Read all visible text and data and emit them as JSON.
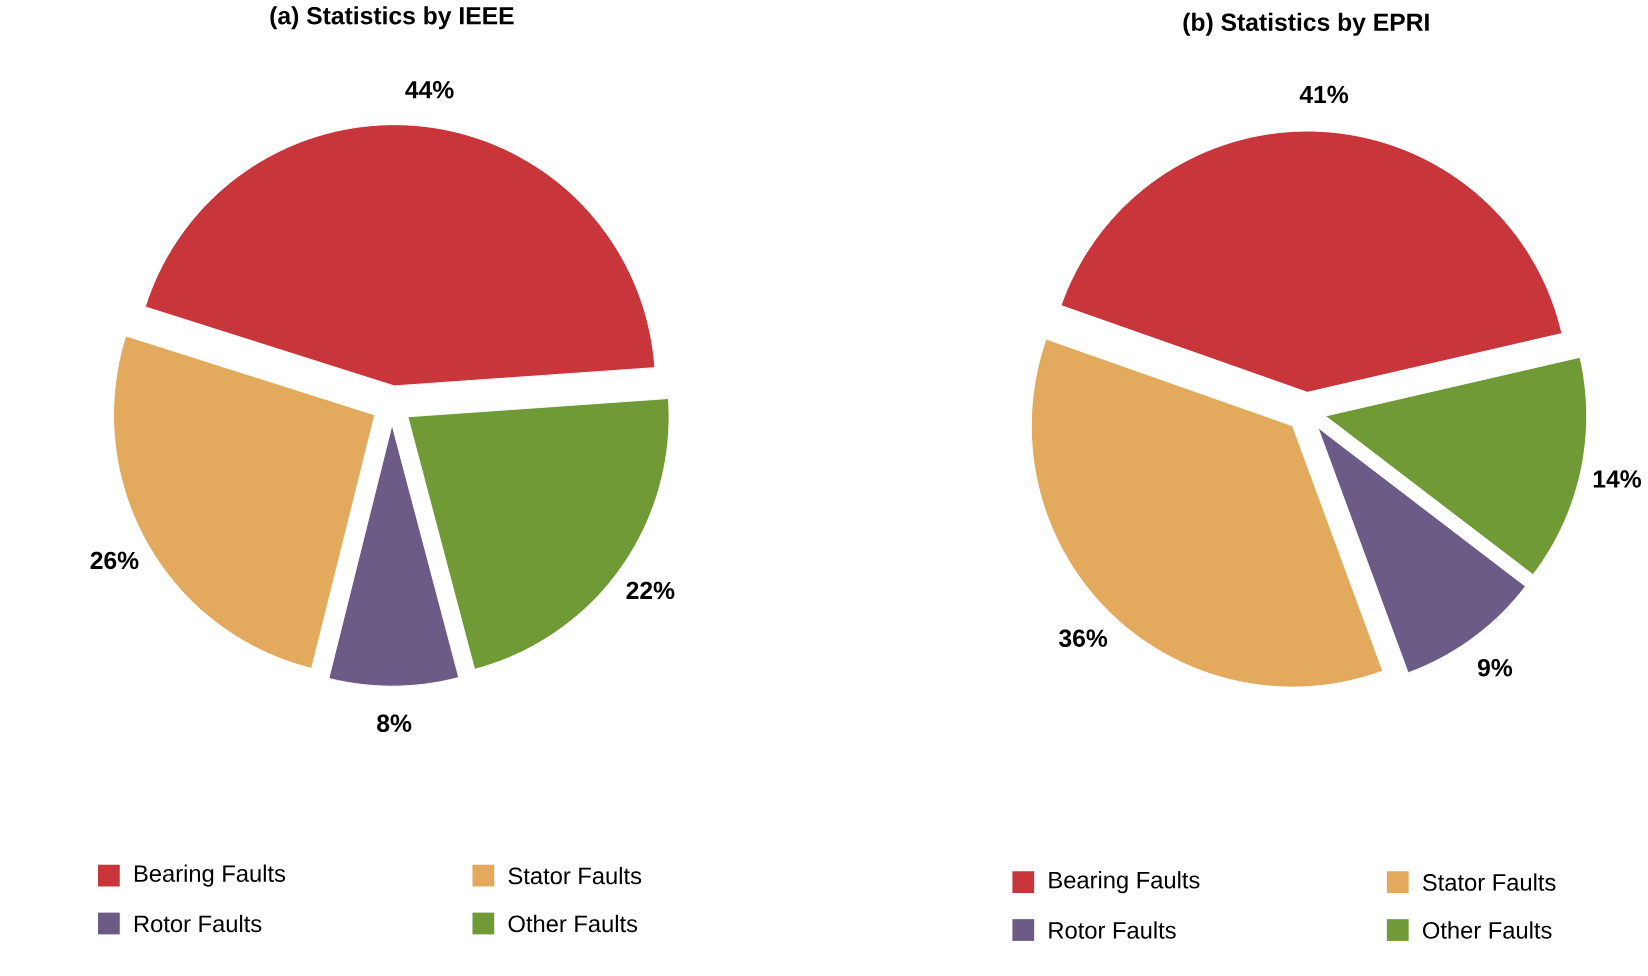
{
  "chart_data": [
    {
      "type": "pie",
      "title": "(a) Statistics by IEEE",
      "categories": [
        "Bearing Faults",
        "Stator Faults",
        "Rotor Faults",
        "Other Faults"
      ],
      "values": [
        44,
        26,
        8,
        22
      ],
      "value_labels": [
        "44%",
        "26%",
        "8%",
        "22%"
      ],
      "colors": [
        "#c8353a",
        "#e3a95c",
        "#6b5b86",
        "#6f9a35"
      ],
      "legend": "bottom"
    },
    {
      "type": "pie",
      "title": "(b) Statistics by EPRI",
      "categories": [
        "Bearing Faults",
        "Stator Faults",
        "Rotor Faults",
        "Other Faults"
      ],
      "values": [
        41,
        36,
        9,
        14
      ],
      "value_labels": [
        "41%",
        "36%",
        "9%",
        "14%"
      ],
      "colors": [
        "#c8353a",
        "#e3a95c",
        "#6b5b86",
        "#6f9a35"
      ],
      "legend": "bottom"
    }
  ]
}
